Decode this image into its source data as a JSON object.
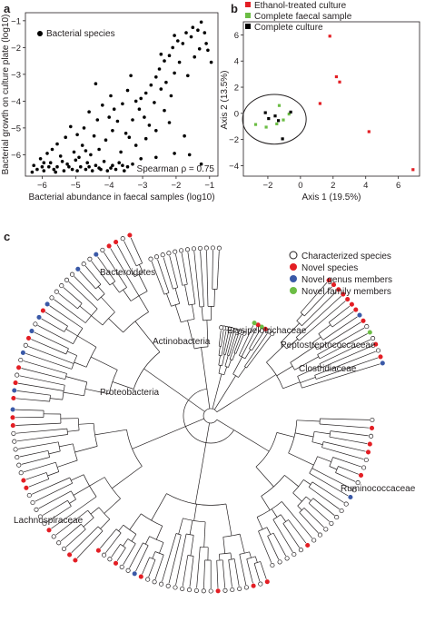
{
  "panels": {
    "a": {
      "label": "a",
      "chart_data": {
        "type": "scatter",
        "xlabel": "Bacterial abundance in faecal samples (log10)",
        "ylabel": "Bacterial growth on culture plate (log10)",
        "xlim": [
          -6.5,
          -0.75
        ],
        "ylim": [
          -6.8,
          -0.7
        ],
        "xticks": [
          -6,
          -5,
          -4,
          -3,
          -2,
          -1
        ],
        "xtick_labels": [
          "−6",
          "−5",
          "−4",
          "−3",
          "−2",
          "−1"
        ],
        "yticks": [
          -6,
          -5,
          -4,
          -3,
          -2,
          -1
        ],
        "ytick_labels": [
          "−6",
          "−5",
          "−4",
          "−3",
          "−2",
          "−1"
        ],
        "legend": "Bacterial species",
        "legend_position": "top-left",
        "annotation": "Spearman ρ = 0.75",
        "series": [
          {
            "name": "Bacterial species",
            "color": "#000000",
            "points": [
              [
                -1.25,
                -1.05
              ],
              [
                -1.35,
                -1.35
              ],
              [
                -1.5,
                -1.25
              ],
              [
                -1.55,
                -1.6
              ],
              [
                -1.3,
                -2.05
              ],
              [
                -1.7,
                -1.45
              ],
              [
                -1.05,
                -2.1
              ],
              [
                -1.8,
                -1.85
              ],
              [
                -1.95,
                -1.75
              ],
              [
                -2.05,
                -1.55
              ],
              [
                -1.15,
                -1.45
              ],
              [
                -0.95,
                -2.55
              ],
              [
                -2.1,
                -2.0
              ],
              [
                -2.2,
                -2.3
              ],
              [
                -1.9,
                -2.55
              ],
              [
                -2.35,
                -2.5
              ],
              [
                -2.5,
                -2.8
              ],
              [
                -2.05,
                -2.95
              ],
              [
                -2.6,
                -3.1
              ],
              [
                -2.3,
                -3.3
              ],
              [
                -2.75,
                -3.4
              ],
              [
                -2.15,
                -3.8
              ],
              [
                -2.9,
                -3.7
              ],
              [
                -2.45,
                -3.55
              ],
              [
                -3.05,
                -3.9
              ],
              [
                -2.65,
                -4.05
              ],
              [
                -3.2,
                -4.0
              ],
              [
                -2.35,
                -4.35
              ],
              [
                -3.1,
                -4.3
              ],
              [
                -3.45,
                -3.6
              ],
              [
                -2.95,
                -4.6
              ],
              [
                -3.6,
                -4.1
              ],
              [
                -2.2,
                -4.8
              ],
              [
                -3.85,
                -4.3
              ],
              [
                -3.3,
                -4.7
              ],
              [
                -2.6,
                -5.1
              ],
              [
                -3.75,
                -4.75
              ],
              [
                -4.0,
                -4.6
              ],
              [
                -2.9,
                -5.4
              ],
              [
                -4.2,
                -4.15
              ],
              [
                -3.5,
                -5.2
              ],
              [
                -1.75,
                -5.3
              ],
              [
                -4.35,
                -4.7
              ],
              [
                -3.9,
                -5.1
              ],
              [
                -4.6,
                -4.4
              ],
              [
                -4.1,
                -5.45
              ],
              [
                -4.75,
                -5.0
              ],
              [
                -3.2,
                -5.65
              ],
              [
                -4.45,
                -5.3
              ],
              [
                -4.95,
                -5.25
              ],
              [
                -5.15,
                -4.95
              ],
              [
                -4.3,
                -5.8
              ],
              [
                -5.3,
                -5.35
              ],
              [
                -3.65,
                -5.9
              ],
              [
                -4.8,
                -5.65
              ],
              [
                -5.55,
                -5.6
              ],
              [
                -5.05,
                -5.9
              ],
              [
                -2.05,
                -5.95
              ],
              [
                -1.6,
                -6.0
              ],
              [
                -2.6,
                -6.1
              ],
              [
                -1.25,
                -6.35
              ],
              [
                -5.85,
                -5.95
              ],
              [
                -4.55,
                -6.0
              ],
              [
                -3.05,
                -6.15
              ],
              [
                -6.25,
                -6.4
              ],
              [
                -6.05,
                -6.15
              ],
              [
                -5.75,
                -6.3
              ],
              [
                -5.45,
                -6.05
              ],
              [
                -5.25,
                -6.35
              ],
              [
                -5.0,
                -6.2
              ],
              [
                -4.85,
                -6.45
              ],
              [
                -4.65,
                -6.3
              ],
              [
                -4.4,
                -6.4
              ],
              [
                -4.15,
                -6.25
              ],
              [
                -3.9,
                -6.4
              ],
              [
                -3.7,
                -6.3
              ],
              [
                -3.45,
                -6.45
              ],
              [
                -3.3,
                -6.35
              ],
              [
                -6.15,
                -6.55
              ],
              [
                -5.95,
                -6.6
              ],
              [
                -5.65,
                -6.55
              ],
              [
                -5.35,
                -6.6
              ],
              [
                -5.1,
                -6.55
              ],
              [
                -4.95,
                -6.6
              ],
              [
                -4.7,
                -6.55
              ],
              [
                -4.5,
                -6.6
              ],
              [
                -4.25,
                -6.55
              ],
              [
                -4.05,
                -6.6
              ],
              [
                -3.8,
                -6.55
              ],
              [
                -3.55,
                -6.6
              ],
              [
                -6.3,
                -6.65
              ],
              [
                -6.0,
                -6.45
              ],
              [
                -5.8,
                -6.45
              ],
              [
                -5.55,
                -6.45
              ],
              [
                -5.6,
                -6.65
              ],
              [
                -5.2,
                -6.45
              ],
              [
                -4.6,
                -6.45
              ],
              [
                -4.3,
                -6.5
              ],
              [
                -3.95,
                -6.5
              ],
              [
                -3.6,
                -6.4
              ],
              [
                -5.4,
                -6.25
              ],
              [
                -4.9,
                -6.1
              ],
              [
                -4.7,
                -5.85
              ],
              [
                -5.7,
                -5.8
              ],
              [
                -5.95,
                -6.3
              ],
              [
                -3.4,
                -5.35
              ],
              [
                -2.8,
                -4.9
              ],
              [
                -3.95,
                -3.8
              ],
              [
                -4.4,
                -3.35
              ],
              [
                -3.35,
                -3.05
              ],
              [
                -2.45,
                -2.25
              ],
              [
                -1.65,
                -3.05
              ],
              [
                -1.45,
                -2.35
              ],
              [
                -1.1,
                -1.85
              ]
            ]
          }
        ]
      }
    },
    "b": {
      "label": "b",
      "chart_data": {
        "type": "scatter",
        "xlabel": "Axis 1 (19.5%)",
        "ylabel": "Axis 2 (13.5%)",
        "xlim": [
          -3.5,
          7.3
        ],
        "ylim": [
          -4.8,
          7.0
        ],
        "xticks": [
          -2,
          0,
          2,
          4,
          6
        ],
        "xtick_labels": [
          "−2",
          "0",
          "2",
          "4",
          "6"
        ],
        "yticks": [
          -4,
          -2,
          0,
          2,
          4,
          6
        ],
        "ytick_labels": [
          "−4",
          "−2",
          "0",
          "2",
          "4",
          "6"
        ],
        "legend_position": "top-left",
        "series": [
          {
            "name": "Ethanol-treated culture",
            "color": "#e31e24",
            "points": [
              [
                1.8,
                5.9
              ],
              [
                2.2,
                2.8
              ],
              [
                2.4,
                2.4
              ],
              [
                1.2,
                0.75
              ],
              [
                4.2,
                -1.4
              ],
              [
                6.9,
                -4.3
              ]
            ]
          },
          {
            "name": "Complete faecal sample",
            "color": "#6cbd45",
            "points": [
              [
                -2.75,
                -0.85
              ],
              [
                -1.45,
                -0.8
              ],
              [
                -0.7,
                -0.05
              ],
              [
                -1.3,
                0.6
              ],
              [
                -2.1,
                -1.05
              ],
              [
                -1.05,
                -0.5
              ]
            ]
          },
          {
            "name": "Complete culture",
            "color": "#000000",
            "points": [
              [
                -1.95,
                -0.4
              ],
              [
                -2.15,
                0.05
              ],
              [
                -1.1,
                -1.95
              ],
              [
                -0.6,
                0.1
              ],
              [
                -1.55,
                -0.2
              ],
              [
                -1.35,
                -0.55
              ]
            ]
          }
        ],
        "annotation_ellipse": {
          "cx": -1.6,
          "cy": -0.45,
          "rx": 1.95,
          "ry": 1.9
        }
      }
    },
    "c": {
      "label": "c",
      "legend": [
        {
          "label": "Characterized species",
          "color": "#ffffff"
        },
        {
          "label": "Novel species",
          "color": "#e31e24"
        },
        {
          "label": "Novel genus members",
          "color": "#3a59a7"
        },
        {
          "label": "Novel family members",
          "color": "#6cbd45"
        }
      ],
      "clades": [
        {
          "label": "Bacteroidetes"
        },
        {
          "label": "Actinobacteria"
        },
        {
          "label": "Erysipelotrichaceae"
        },
        {
          "label": "Peptostreptococcaceae"
        },
        {
          "label": "Clostridiaceae"
        },
        {
          "label": "Proteobacteria"
        },
        {
          "label": "Ruminococcaceae"
        },
        {
          "label": "Lachnospiraceae"
        }
      ]
    }
  }
}
